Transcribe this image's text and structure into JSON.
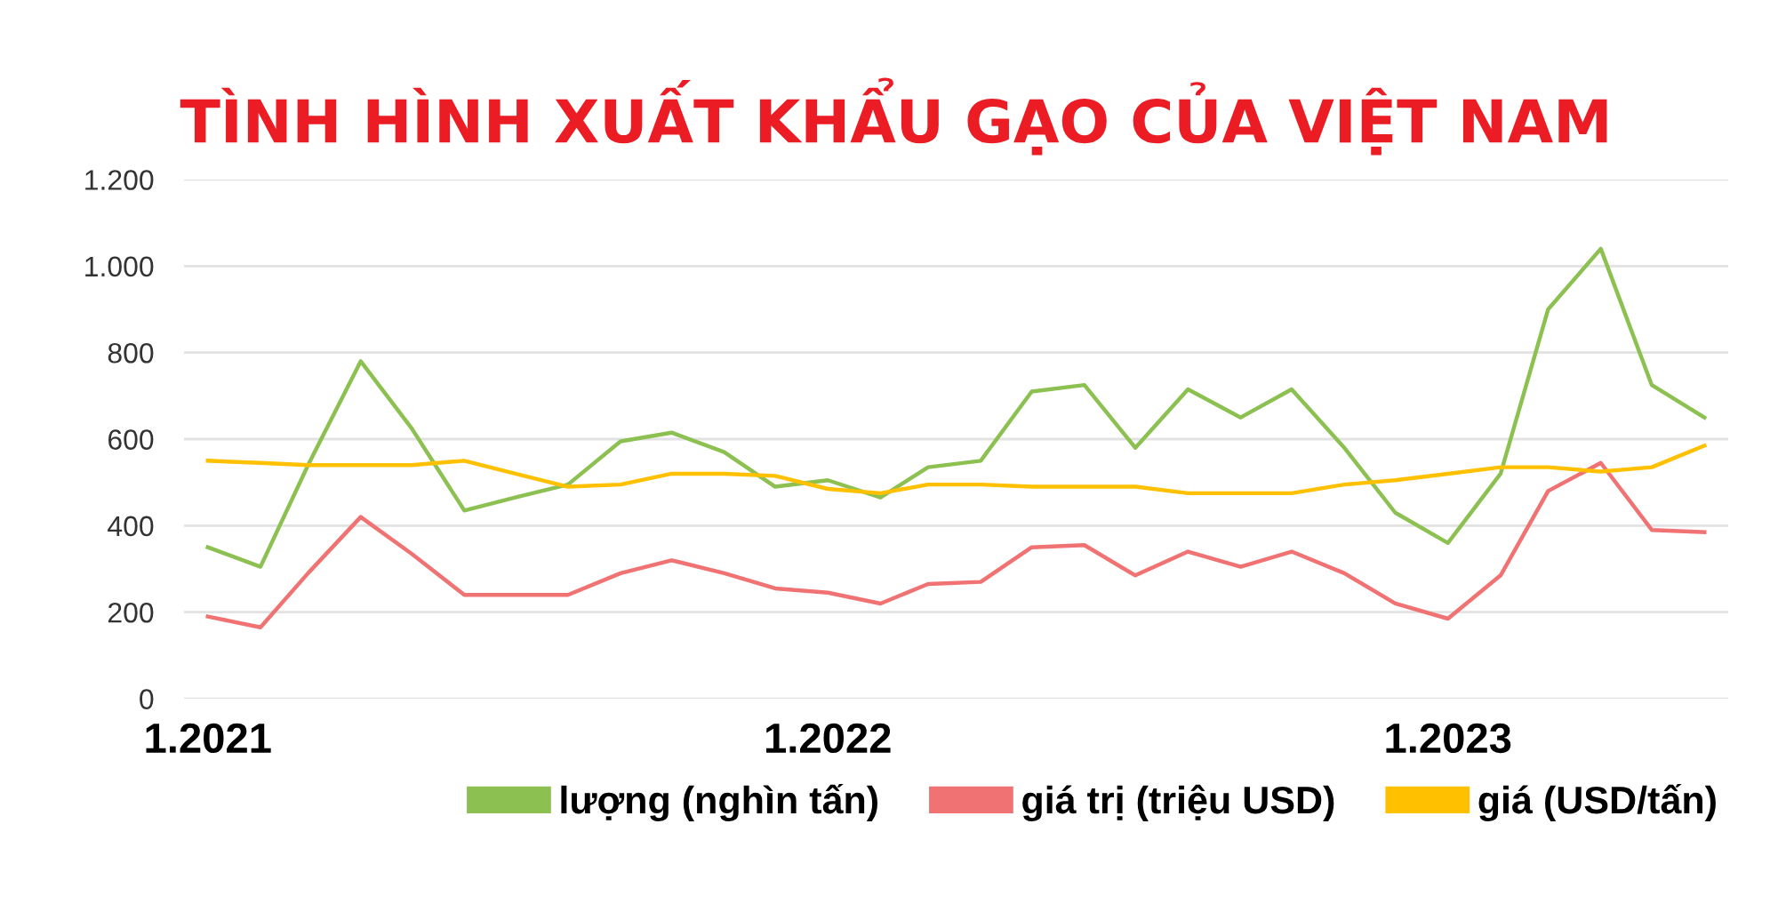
{
  "chart_data": {
    "type": "line",
    "title": "TÌNH HÌNH XUẤT KHẨU GẠO CỦA VIỆT NAM",
    "x": [
      "2021-01",
      "2021-02",
      "2021-03",
      "2021-04",
      "2021-05",
      "2021-06",
      "2021-07",
      "2021-08",
      "2021-09",
      "2021-10",
      "2021-11",
      "2021-12",
      "2022-01",
      "2022-02",
      "2022-03",
      "2022-04",
      "2022-05",
      "2022-06",
      "2022-07",
      "2022-08",
      "2022-09",
      "2022-10",
      "2022-11",
      "2022-12",
      "2023-01",
      "2023-02",
      "2023-03",
      "2023-04",
      "2023-05",
      "2023-06"
    ],
    "xlim": [
      "2020-12-18",
      "2023-06-15"
    ],
    "xticks": [
      {
        "value": "2021-01",
        "label": "1.2021"
      },
      {
        "value": "2022-01",
        "label": "1.2022"
      },
      {
        "value": "2023-01",
        "label": "1.2023"
      }
    ],
    "ylim": [
      0,
      1200
    ],
    "yticks": [
      0,
      200,
      400,
      600,
      800,
      {
        "value": 1000,
        "label": "1.000"
      },
      {
        "value": 1200,
        "label": "1.200"
      }
    ],
    "grid": "y",
    "legend": "bottom right",
    "marker": "none",
    "line_style": "solid",
    "series": [
      {
        "name": "lượng (nghìn tấn)",
        "color": "#8cc152",
        "values": [
          350,
          305,
          540,
          780,
          625,
          435,
          465,
          495,
          595,
          615,
          570,
          490,
          505,
          465,
          535,
          550,
          710,
          725,
          580,
          715,
          650,
          715,
          580,
          430,
          360,
          520,
          900,
          1040,
          725,
          650
        ]
      },
      {
        "name": "giá trị (triệu USD)",
        "color": "#f07272",
        "values": [
          190,
          165,
          290,
          420,
          335,
          240,
          240,
          240,
          290,
          320,
          290,
          255,
          245,
          220,
          265,
          270,
          350,
          355,
          285,
          340,
          305,
          340,
          290,
          220,
          185,
          285,
          480,
          545,
          390,
          385
        ]
      },
      {
        "name": "giá (USD/tấn)",
        "color": "#ffc000",
        "values": [
          550,
          545,
          540,
          540,
          540,
          550,
          520,
          490,
          495,
          520,
          520,
          515,
          485,
          475,
          495,
          495,
          490,
          490,
          490,
          475,
          475,
          475,
          495,
          505,
          520,
          535,
          535,
          525,
          535,
          585
        ]
      }
    ]
  }
}
